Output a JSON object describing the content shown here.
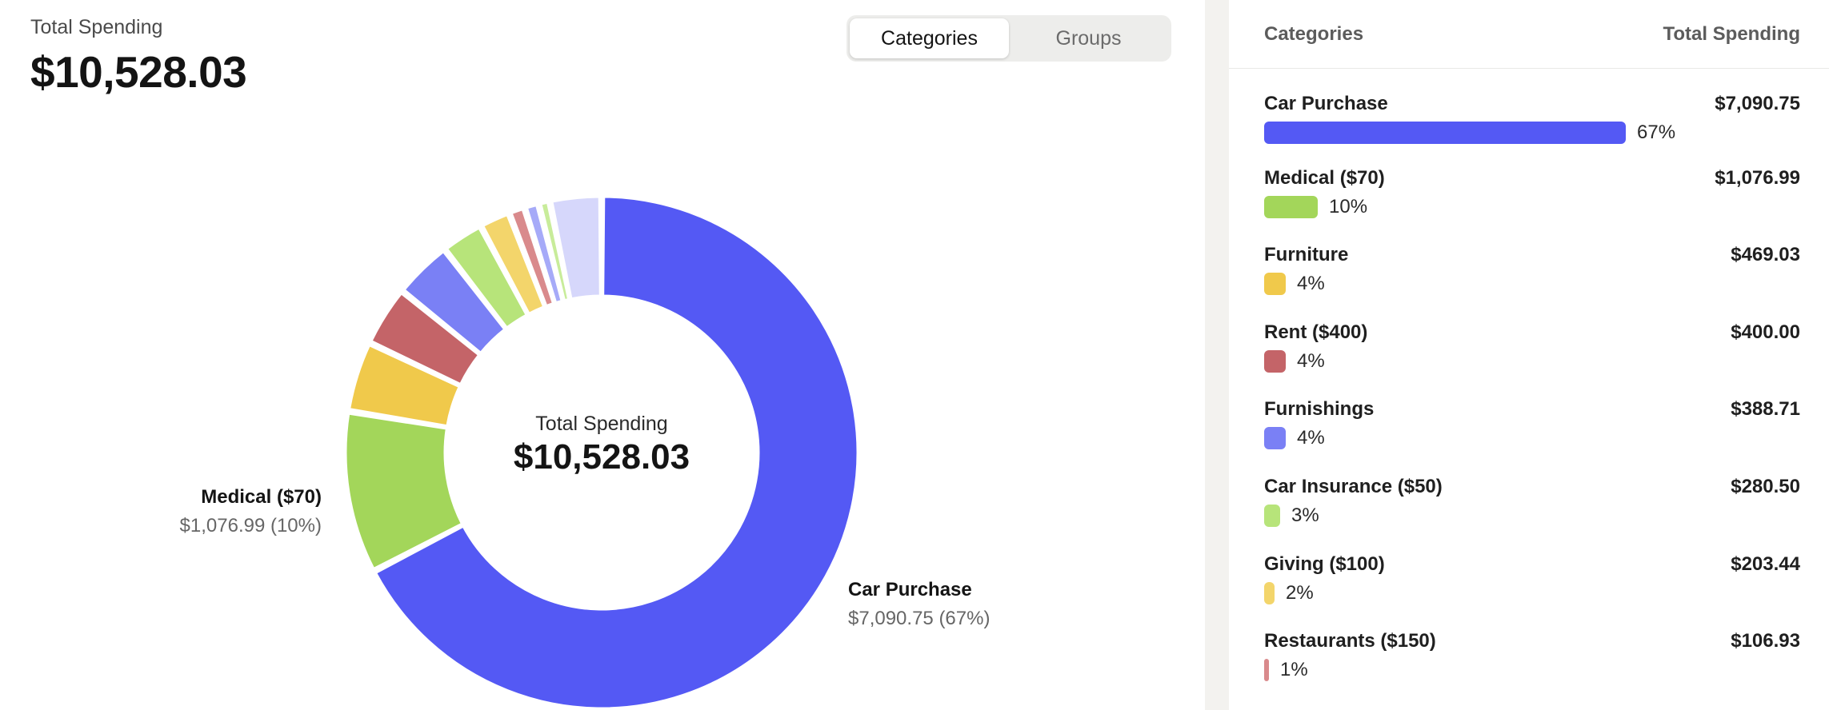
{
  "header": {
    "total_label": "Total Spending",
    "total_value": "$10,528.03"
  },
  "tabs": [
    {
      "label": "Categories",
      "active": true
    },
    {
      "label": "Groups",
      "active": false
    }
  ],
  "donut": {
    "center_label": "Total Spending",
    "center_value": "$10,528.03"
  },
  "callouts": {
    "medical": {
      "name": "Medical ($70)",
      "value": "$1,076.99 (10%)"
    },
    "car": {
      "name": "Car Purchase",
      "value": "$7,090.75 (67%)"
    }
  },
  "list": {
    "header_left": "Categories",
    "header_right": "Total Spending",
    "items": [
      {
        "name": "Car Purchase",
        "amount": "$7,090.75",
        "pct": "67%",
        "color": "#5459f4"
      },
      {
        "name": "Medical ($70)",
        "amount": "$1,076.99",
        "pct": "10%",
        "color": "#a3d65a"
      },
      {
        "name": "Furniture",
        "amount": "$469.03",
        "pct": "4%",
        "color": "#f0c94b"
      },
      {
        "name": "Rent ($400)",
        "amount": "$400.00",
        "pct": "4%",
        "color": "#c46468"
      },
      {
        "name": "Furnishings",
        "amount": "$388.71",
        "pct": "4%",
        "color": "#7a80f5"
      },
      {
        "name": "Car Insurance ($50)",
        "amount": "$280.50",
        "pct": "3%",
        "color": "#b7e47a"
      },
      {
        "name": "Giving ($100)",
        "amount": "$203.44",
        "pct": "2%",
        "color": "#f3d56b"
      },
      {
        "name": "Restaurants ($150)",
        "amount": "$106.93",
        "pct": "1%",
        "color": "#d98a8c"
      }
    ]
  },
  "chart_data": {
    "type": "pie",
    "title": "",
    "center_text": [
      "Total Spending",
      "$10,528.03"
    ],
    "total": 10528.03,
    "slices": [
      {
        "name": "Car Purchase",
        "value": 7090.75,
        "color": "#5459f4"
      },
      {
        "name": "Medical ($70)",
        "value": 1076.99,
        "color": "#a3d65a"
      },
      {
        "name": "Furniture",
        "value": 469.03,
        "color": "#f0c94b"
      },
      {
        "name": "Rent ($400)",
        "value": 400.0,
        "color": "#c46468"
      },
      {
        "name": "Furnishings",
        "value": 388.71,
        "color": "#7a80f5"
      },
      {
        "name": "Car Insurance ($50)",
        "value": 280.5,
        "color": "#b7e47a"
      },
      {
        "name": "Giving ($100)",
        "value": 203.44,
        "color": "#f3d56b"
      },
      {
        "name": "Restaurants ($150)",
        "value": 106.93,
        "color": "#d98a8c"
      },
      {
        "name": "",
        "value": 95,
        "color": "#a6aaf8"
      },
      {
        "name": "",
        "value": 75,
        "color": "#c8ec9a"
      },
      {
        "name": "",
        "value": 341.68,
        "color": "#d6d7fb"
      }
    ]
  }
}
